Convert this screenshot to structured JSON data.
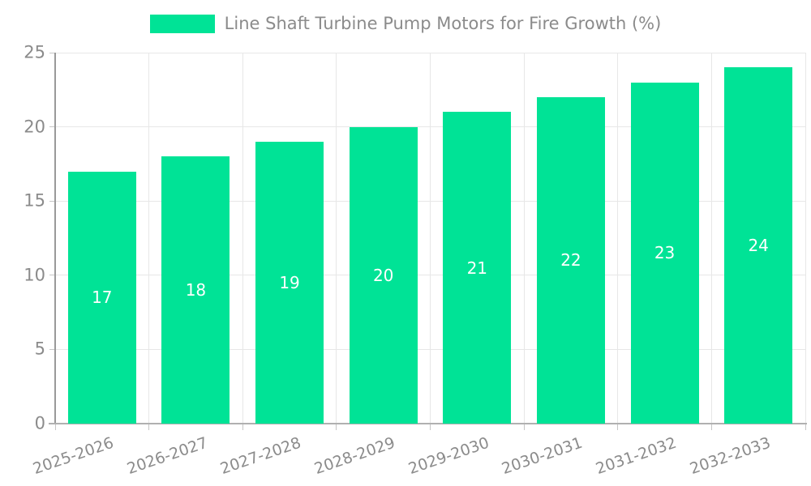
{
  "chart_data": {
    "type": "bar",
    "title": "",
    "legend": "Line Shaft Turbine Pump Motors for Fire Growth (%)",
    "legend_position": "top",
    "categories": [
      "2025-2026",
      "2026-2027",
      "2027-2028",
      "2028-2029",
      "2029-2030",
      "2030-2031",
      "2031-2032",
      "2032-2033"
    ],
    "series": [
      {
        "name": "Line Shaft Turbine Pump Motors for Fire Growth (%)",
        "values": [
          17,
          18,
          19,
          20,
          21,
          22,
          23,
          24
        ]
      }
    ],
    "bar_labels": [
      "17",
      "18",
      "19",
      "20",
      "21",
      "22",
      "23",
      "24"
    ],
    "xlabel": "",
    "ylabel": "",
    "ylim": [
      0,
      25
    ],
    "yticks": [
      0,
      5,
      10,
      15,
      20,
      25
    ],
    "grid": true,
    "colors": {
      "bar": "#00E396",
      "bar_label_text": "#ffffff",
      "axis_text": "#8b8b8b",
      "gridline": "#e7e7e7",
      "y_axis_line": "#999999",
      "x_axis_line": "#b0b0b0",
      "tick": "#c6c6c6",
      "background": "#ffffff"
    }
  }
}
